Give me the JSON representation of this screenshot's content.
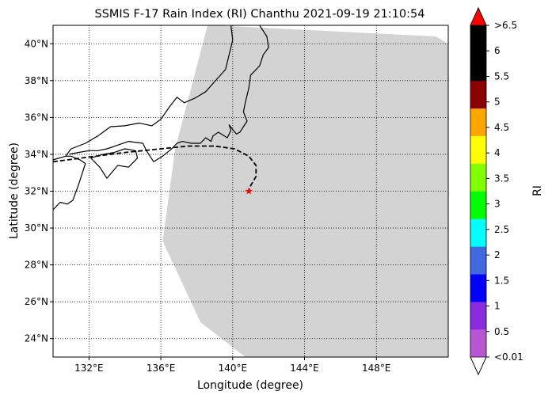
{
  "chart_data": {
    "type": "map",
    "title": "SSMIS F-17 Rain Index (RI) Chanthu 2021-09-19 21:10:54",
    "xlabel": "Longitude (degree)",
    "ylabel": "Latitude (degree)",
    "xlim": [
      130.0,
      152.0
    ],
    "ylim": [
      23.0,
      41.0
    ],
    "x_ticks": [
      {
        "value": 132,
        "label": "132°E"
      },
      {
        "value": 136,
        "label": "136°E"
      },
      {
        "value": 140,
        "label": "140°E"
      },
      {
        "value": 144,
        "label": "144°E"
      },
      {
        "value": 148,
        "label": "148°E"
      }
    ],
    "y_ticks": [
      {
        "value": 24,
        "label": "24°N"
      },
      {
        "value": 26,
        "label": "26°N"
      },
      {
        "value": 28,
        "label": "28°N"
      },
      {
        "value": 30,
        "label": "30°N"
      },
      {
        "value": 32,
        "label": "32°N"
      },
      {
        "value": 34,
        "label": "34°N"
      },
      {
        "value": 36,
        "label": "36°N"
      },
      {
        "value": 38,
        "label": "38°N"
      },
      {
        "value": 40,
        "label": "40°N"
      }
    ],
    "grid": true,
    "swath": {
      "color": "#d3d3d3",
      "polygon": [
        [
          139.0,
          41.0
        ],
        [
          151.3,
          40.4
        ],
        [
          152.0,
          40.0
        ],
        [
          152.0,
          23.0
        ],
        [
          140.7,
          23.0
        ],
        [
          138.2,
          24.9
        ],
        [
          136.1,
          29.3
        ],
        [
          136.8,
          34.3
        ],
        [
          138.6,
          41.0
        ]
      ]
    },
    "track": {
      "style": "dashed",
      "color": "#000000",
      "points": [
        [
          130.0,
          33.6
        ],
        [
          132.0,
          33.85
        ],
        [
          134.0,
          34.1
        ],
        [
          136.0,
          34.3
        ],
        [
          137.5,
          34.45
        ],
        [
          139.0,
          34.45
        ],
        [
          140.1,
          34.3
        ],
        [
          140.9,
          33.9
        ],
        [
          141.3,
          33.4
        ],
        [
          141.3,
          32.8
        ],
        [
          141.0,
          32.3
        ],
        [
          140.9,
          32.0
        ]
      ]
    },
    "storm_position": {
      "lon": 140.9,
      "lat": 32.0,
      "marker": "star",
      "color": "#ff0000"
    },
    "coastlines": [
      [
        [
          130.0,
          33.7
        ],
        [
          130.7,
          33.9
        ],
        [
          131.0,
          34.3
        ],
        [
          131.8,
          34.6
        ],
        [
          132.5,
          35.0
        ],
        [
          133.2,
          35.5
        ],
        [
          134.0,
          35.55
        ],
        [
          134.8,
          35.7
        ],
        [
          135.5,
          35.55
        ],
        [
          136.0,
          35.9
        ],
        [
          136.5,
          36.6
        ],
        [
          136.9,
          37.1
        ],
        [
          137.3,
          36.8
        ],
        [
          137.9,
          37.05
        ],
        [
          138.5,
          37.4
        ],
        [
          139.0,
          37.95
        ],
        [
          139.6,
          38.6
        ],
        [
          139.8,
          39.4
        ],
        [
          140.0,
          40.2
        ],
        [
          139.9,
          41.0
        ]
      ],
      [
        [
          130.0,
          31.0
        ],
        [
          130.4,
          31.4
        ],
        [
          130.8,
          31.3
        ],
        [
          131.1,
          31.5
        ],
        [
          131.4,
          32.3
        ],
        [
          131.6,
          32.9
        ],
        [
          131.8,
          33.5
        ],
        [
          131.5,
          33.7
        ],
        [
          131.0,
          33.9
        ],
        [
          130.7,
          33.9
        ]
      ],
      [
        [
          130.9,
          34.0
        ],
        [
          131.4,
          34.1
        ],
        [
          132.0,
          34.2
        ],
        [
          132.5,
          34.2
        ],
        [
          133.0,
          34.3
        ],
        [
          133.6,
          34.5
        ],
        [
          134.2,
          34.7
        ],
        [
          135.0,
          34.6
        ],
        [
          135.2,
          34.2
        ],
        [
          135.6,
          33.6
        ],
        [
          136.1,
          33.9
        ],
        [
          136.6,
          34.3
        ],
        [
          136.9,
          34.6
        ],
        [
          137.2,
          34.7
        ],
        [
          137.7,
          34.6
        ],
        [
          138.2,
          34.6
        ],
        [
          138.5,
          34.9
        ],
        [
          138.8,
          34.7
        ],
        [
          138.9,
          35.0
        ],
        [
          139.2,
          35.2
        ],
        [
          139.7,
          34.9
        ],
        [
          139.9,
          35.3
        ],
        [
          139.8,
          35.6
        ],
        [
          140.2,
          35.1
        ],
        [
          140.4,
          35.2
        ],
        [
          140.8,
          35.8
        ],
        [
          140.6,
          36.3
        ],
        [
          140.7,
          36.8
        ],
        [
          140.9,
          37.6
        ],
        [
          141.0,
          38.3
        ],
        [
          141.5,
          38.8
        ],
        [
          141.7,
          39.4
        ],
        [
          142.0,
          39.8
        ],
        [
          141.9,
          40.4
        ],
        [
          141.5,
          41.0
        ]
      ],
      [
        [
          132.1,
          33.8
        ],
        [
          132.6,
          33.3
        ],
        [
          133.0,
          32.7
        ],
        [
          133.6,
          33.4
        ],
        [
          134.2,
          33.3
        ],
        [
          134.7,
          33.8
        ],
        [
          134.6,
          34.2
        ],
        [
          134.0,
          34.3
        ],
        [
          133.4,
          34.1
        ],
        [
          132.8,
          34.0
        ],
        [
          132.1,
          33.8
        ]
      ]
    ],
    "colorbar": {
      "label": "RI",
      "levels": [
        "<0.01",
        "0.5",
        "1",
        "1.5",
        "2",
        "2.5",
        "3",
        "3.5",
        "4",
        "4.5",
        "5",
        "5.5",
        "6",
        ">6.5"
      ],
      "colors": [
        "#ba55d3",
        "#8a2be2",
        "#0000ff",
        "#4169e1",
        "#00ffff",
        "#00ff00",
        "#7fff00",
        "#ffff00",
        "#ffa500",
        "#8b0000",
        "#000000",
        "#000000"
      ],
      "under_color": "#ffffff",
      "over_color": "#ff0000"
    }
  }
}
